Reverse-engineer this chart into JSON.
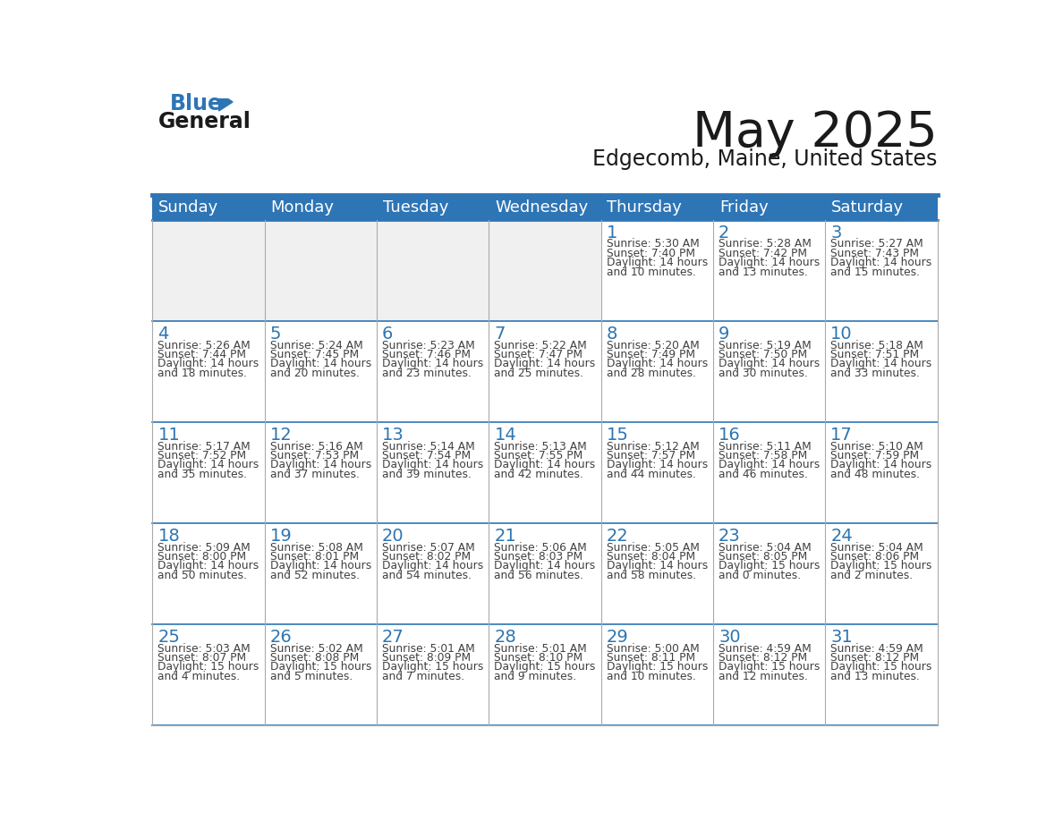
{
  "title": "May 2025",
  "subtitle": "Edgecomb, Maine, United States",
  "header_color": "#2E75B6",
  "header_text_color": "#FFFFFF",
  "day_names": [
    "Sunday",
    "Monday",
    "Tuesday",
    "Wednesday",
    "Thursday",
    "Friday",
    "Saturday"
  ],
  "cell_bg_color": "#FFFFFF",
  "empty_cell_bg_color": "#F0F0F0",
  "border_color": "#2E75B6",
  "grid_color": "#AAAAAA",
  "day_number_color": "#2E75B2",
  "text_color": "#404040",
  "logo_general_color": "#1A1A1A",
  "logo_blue_color": "#2E75B6",
  "weeks": [
    [
      {
        "day": null,
        "sunrise": null,
        "sunset": null,
        "daylight": null
      },
      {
        "day": null,
        "sunrise": null,
        "sunset": null,
        "daylight": null
      },
      {
        "day": null,
        "sunrise": null,
        "sunset": null,
        "daylight": null
      },
      {
        "day": null,
        "sunrise": null,
        "sunset": null,
        "daylight": null
      },
      {
        "day": 1,
        "sunrise": "5:30 AM",
        "sunset": "7:40 PM",
        "daylight": "14 hours\nand 10 minutes."
      },
      {
        "day": 2,
        "sunrise": "5:28 AM",
        "sunset": "7:42 PM",
        "daylight": "14 hours\nand 13 minutes."
      },
      {
        "day": 3,
        "sunrise": "5:27 AM",
        "sunset": "7:43 PM",
        "daylight": "14 hours\nand 15 minutes."
      }
    ],
    [
      {
        "day": 4,
        "sunrise": "5:26 AM",
        "sunset": "7:44 PM",
        "daylight": "14 hours\nand 18 minutes."
      },
      {
        "day": 5,
        "sunrise": "5:24 AM",
        "sunset": "7:45 PM",
        "daylight": "14 hours\nand 20 minutes."
      },
      {
        "day": 6,
        "sunrise": "5:23 AM",
        "sunset": "7:46 PM",
        "daylight": "14 hours\nand 23 minutes."
      },
      {
        "day": 7,
        "sunrise": "5:22 AM",
        "sunset": "7:47 PM",
        "daylight": "14 hours\nand 25 minutes."
      },
      {
        "day": 8,
        "sunrise": "5:20 AM",
        "sunset": "7:49 PM",
        "daylight": "14 hours\nand 28 minutes."
      },
      {
        "day": 9,
        "sunrise": "5:19 AM",
        "sunset": "7:50 PM",
        "daylight": "14 hours\nand 30 minutes."
      },
      {
        "day": 10,
        "sunrise": "5:18 AM",
        "sunset": "7:51 PM",
        "daylight": "14 hours\nand 33 minutes."
      }
    ],
    [
      {
        "day": 11,
        "sunrise": "5:17 AM",
        "sunset": "7:52 PM",
        "daylight": "14 hours\nand 35 minutes."
      },
      {
        "day": 12,
        "sunrise": "5:16 AM",
        "sunset": "7:53 PM",
        "daylight": "14 hours\nand 37 minutes."
      },
      {
        "day": 13,
        "sunrise": "5:14 AM",
        "sunset": "7:54 PM",
        "daylight": "14 hours\nand 39 minutes."
      },
      {
        "day": 14,
        "sunrise": "5:13 AM",
        "sunset": "7:55 PM",
        "daylight": "14 hours\nand 42 minutes."
      },
      {
        "day": 15,
        "sunrise": "5:12 AM",
        "sunset": "7:57 PM",
        "daylight": "14 hours\nand 44 minutes."
      },
      {
        "day": 16,
        "sunrise": "5:11 AM",
        "sunset": "7:58 PM",
        "daylight": "14 hours\nand 46 minutes."
      },
      {
        "day": 17,
        "sunrise": "5:10 AM",
        "sunset": "7:59 PM",
        "daylight": "14 hours\nand 48 minutes."
      }
    ],
    [
      {
        "day": 18,
        "sunrise": "5:09 AM",
        "sunset": "8:00 PM",
        "daylight": "14 hours\nand 50 minutes."
      },
      {
        "day": 19,
        "sunrise": "5:08 AM",
        "sunset": "8:01 PM",
        "daylight": "14 hours\nand 52 minutes."
      },
      {
        "day": 20,
        "sunrise": "5:07 AM",
        "sunset": "8:02 PM",
        "daylight": "14 hours\nand 54 minutes."
      },
      {
        "day": 21,
        "sunrise": "5:06 AM",
        "sunset": "8:03 PM",
        "daylight": "14 hours\nand 56 minutes."
      },
      {
        "day": 22,
        "sunrise": "5:05 AM",
        "sunset": "8:04 PM",
        "daylight": "14 hours\nand 58 minutes."
      },
      {
        "day": 23,
        "sunrise": "5:04 AM",
        "sunset": "8:05 PM",
        "daylight": "15 hours\nand 0 minutes."
      },
      {
        "day": 24,
        "sunrise": "5:04 AM",
        "sunset": "8:06 PM",
        "daylight": "15 hours\nand 2 minutes."
      }
    ],
    [
      {
        "day": 25,
        "sunrise": "5:03 AM",
        "sunset": "8:07 PM",
        "daylight": "15 hours\nand 4 minutes."
      },
      {
        "day": 26,
        "sunrise": "5:02 AM",
        "sunset": "8:08 PM",
        "daylight": "15 hours\nand 5 minutes."
      },
      {
        "day": 27,
        "sunrise": "5:01 AM",
        "sunset": "8:09 PM",
        "daylight": "15 hours\nand 7 minutes."
      },
      {
        "day": 28,
        "sunrise": "5:01 AM",
        "sunset": "8:10 PM",
        "daylight": "15 hours\nand 9 minutes."
      },
      {
        "day": 29,
        "sunrise": "5:00 AM",
        "sunset": "8:11 PM",
        "daylight": "15 hours\nand 10 minutes."
      },
      {
        "day": 30,
        "sunrise": "4:59 AM",
        "sunset": "8:12 PM",
        "daylight": "15 hours\nand 12 minutes."
      },
      {
        "day": 31,
        "sunrise": "4:59 AM",
        "sunset": "8:12 PM",
        "daylight": "15 hours\nand 13 minutes."
      }
    ]
  ]
}
